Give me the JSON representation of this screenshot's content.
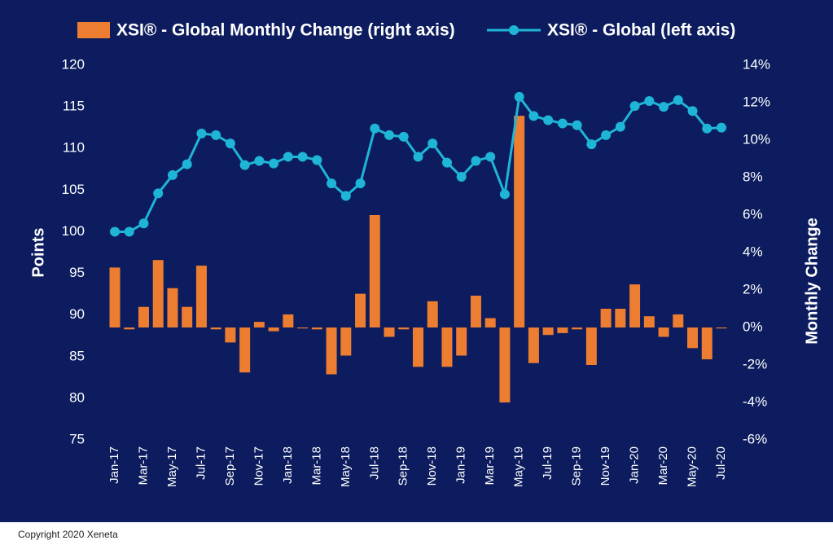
{
  "chart_data": {
    "type": "bar_line_dual",
    "categories": [
      "Jan-17",
      null,
      "Mar-17",
      null,
      "May-17",
      null,
      "Jul-17",
      null,
      "Sep-17",
      null,
      "Nov-17",
      null,
      "Jan-18",
      null,
      "Mar-18",
      null,
      "May-18",
      null,
      "Jul-18",
      null,
      "Sep-18",
      null,
      "Nov-18",
      null,
      "Jan-19",
      null,
      "Mar-19",
      null,
      "May-19",
      null,
      "Jul-19",
      null,
      "Sep-19",
      null,
      "Nov-19",
      null,
      "Jan-20",
      null,
      "Mar-20",
      null,
      "May-20",
      null,
      "Jul-20"
    ],
    "series": [
      {
        "name": "XSI® - Global Monthly Change (right axis)",
        "color": "#ed7d31",
        "axis": "y2",
        "kind": "bar",
        "values": [
          3.2,
          -0.1,
          1.1,
          3.6,
          2.1,
          1.1,
          3.3,
          -0.1,
          -0.8,
          -2.4,
          0.3,
          -0.2,
          0.7,
          -0.05,
          -0.1,
          -2.5,
          -1.5,
          1.8,
          6.0,
          -0.5,
          -0.1,
          -2.1,
          1.4,
          -2.1,
          -1.5,
          1.7,
          0.5,
          -4.0,
          11.3,
          -1.9,
          -0.4,
          -0.3,
          -0.1,
          -2.0,
          1.0,
          1.0,
          2.3,
          0.6,
          -0.5,
          0.7,
          -1.1,
          -1.7,
          -0.05
        ]
      },
      {
        "name": "XSI® - Global (left axis)",
        "color": "#1fb5d6",
        "axis": "y",
        "kind": "line",
        "values": [
          100,
          100,
          101,
          104.6,
          106.8,
          108.1,
          111.8,
          111.6,
          110.6,
          108,
          108.5,
          108.2,
          109,
          109,
          108.6,
          105.8,
          104.3,
          105.8,
          112.4,
          111.6,
          111.4,
          109,
          110.6,
          108.3,
          106.6,
          108.5,
          109,
          104.5,
          116.2,
          113.9,
          113.4,
          113,
          112.8,
          110.5,
          111.6,
          112.6,
          115.1,
          115.7,
          115,
          115.8,
          114.5,
          112.4,
          112.5
        ]
      }
    ],
    "ylabel": "Points",
    "y2label": "Monthly Change",
    "ylim": [
      75,
      120
    ],
    "yticks": [
      75,
      80,
      85,
      90,
      95,
      100,
      105,
      110,
      115,
      120
    ],
    "y2lim": [
      -6,
      14
    ],
    "y2ticks": [
      {
        "value": -6,
        "label": "-6%"
      },
      {
        "value": -4,
        "label": "-4%"
      },
      {
        "value": -2,
        "label": "-2%"
      },
      {
        "value": 0,
        "label": "0%"
      },
      {
        "value": 2,
        "label": "2%"
      },
      {
        "value": 4,
        "label": "4%"
      },
      {
        "value": 6,
        "label": "6%"
      },
      {
        "value": 8,
        "label": "8%"
      },
      {
        "value": 10,
        "label": "10%"
      },
      {
        "value": 12,
        "label": "12%"
      },
      {
        "value": 14,
        "label": "14%"
      }
    ],
    "legend": "top",
    "background": "#0c1c5e"
  },
  "footer": "Copyright 2020 Xeneta"
}
